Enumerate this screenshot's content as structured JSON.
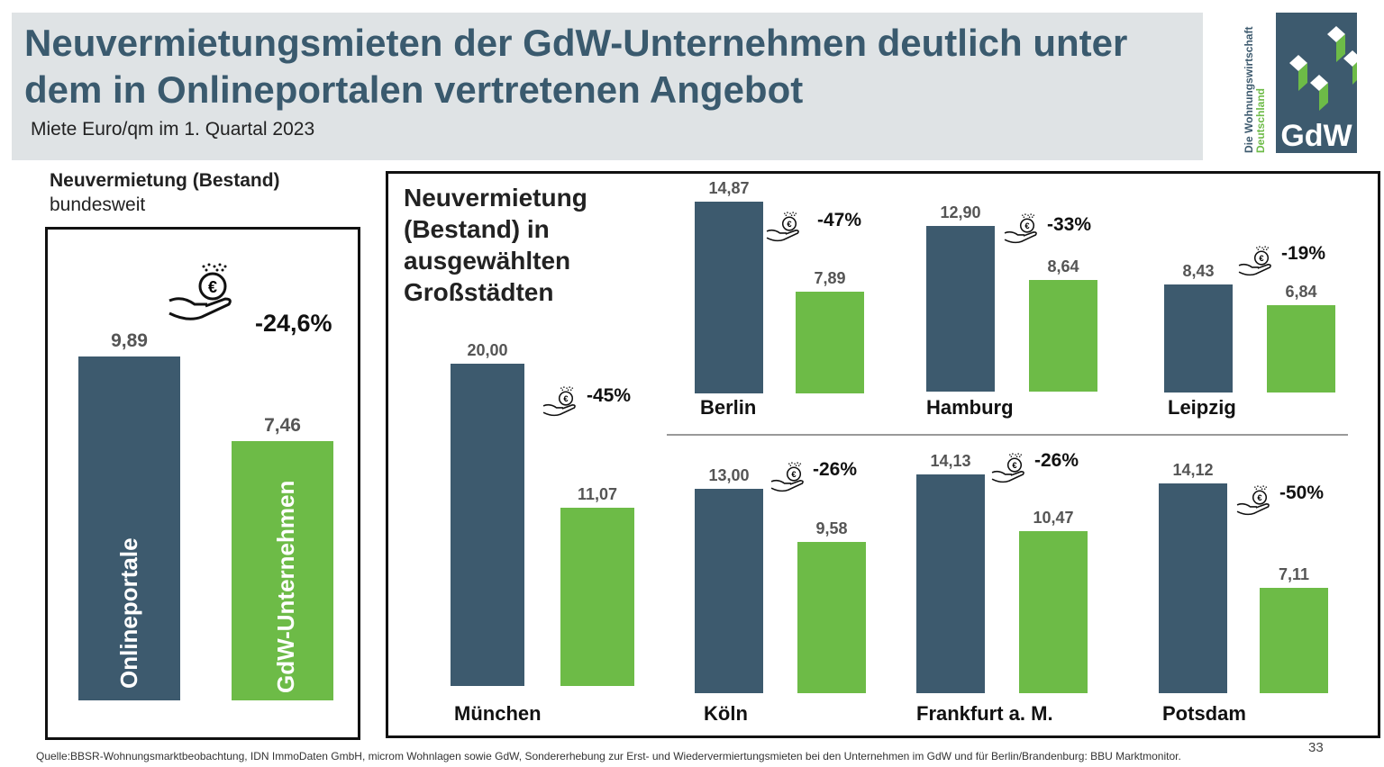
{
  "header": {
    "title": "Neuvermietungsmieten der GdW-Unternehmen deutlich unter dem in Onlineportalen vertretenen Angebot",
    "subtitle": "Miete Euro/qm im 1. Quartal 2023"
  },
  "logo": {
    "text": "GdW",
    "line1": "Die Wohnungswirtschaft",
    "line2": "Deutschland"
  },
  "colors": {
    "online": "#3d5a6e",
    "gdw": "#6dbb47",
    "header_bg": "#dfe3e5"
  },
  "chart_data": [
    {
      "type": "bar",
      "title": "Neuvermietung (Bestand)",
      "subtitle": "bundesweit",
      "categories": [
        "Onlineportale",
        "GdW-Unternehmen"
      ],
      "values": [
        9.89,
        7.46
      ],
      "value_labels": [
        "9,89",
        "7,46"
      ],
      "difference": "-24,6%"
    },
    {
      "type": "bar",
      "title": "Neuvermietung (Bestand) in ausgewählten Großstädten",
      "series_names": [
        "Onlineportale",
        "GdW-Unternehmen"
      ],
      "cities": [
        {
          "name": "München",
          "values": [
            20.0,
            11.07
          ],
          "labels": [
            "20,00",
            "11,07"
          ],
          "difference": "-45%"
        },
        {
          "name": "Berlin",
          "values": [
            14.87,
            7.89
          ],
          "labels": [
            "14,87",
            "7,89"
          ],
          "difference": "-47%"
        },
        {
          "name": "Hamburg",
          "values": [
            12.9,
            8.64
          ],
          "labels": [
            "12,90",
            "8,64"
          ],
          "difference": "-33%"
        },
        {
          "name": "Leipzig",
          "values": [
            8.43,
            6.84
          ],
          "labels": [
            "8,43",
            "6,84"
          ],
          "difference": "-19%"
        },
        {
          "name": "Köln",
          "values": [
            13.0,
            9.58
          ],
          "labels": [
            "13,00",
            "9,58"
          ],
          "difference": "-26%"
        },
        {
          "name": "Frankfurt a. M.",
          "values": [
            14.13,
            10.47
          ],
          "labels": [
            "14,13",
            "10,47"
          ],
          "difference": "-26%"
        },
        {
          "name": "Potsdam",
          "values": [
            14.12,
            7.11
          ],
          "labels": [
            "14,12",
            "7,11"
          ],
          "difference": "-50%"
        }
      ]
    }
  ],
  "footer": {
    "source": "Quelle:BBSR-Wohnungsmarktbeobachtung, IDN ImmoDaten GmbH, microm Wohnlagen sowie GdW, Sondererhebung zur Erst- und Wiedervermiertungsmieten bei den Unternehmen im GdW  und für Berlin/Brandenburg: BBU Marktmonitor.",
    "page": "33"
  }
}
